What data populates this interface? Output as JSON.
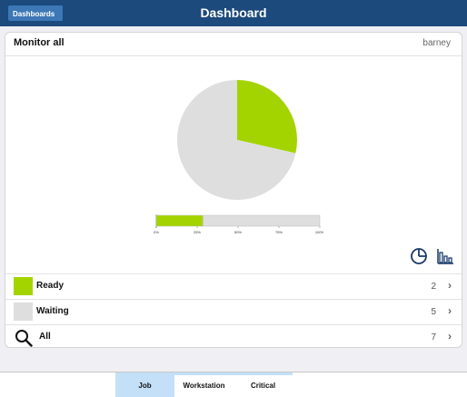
{
  "header": {
    "back_label": "Dashboards",
    "title": "Dashboard"
  },
  "card": {
    "title": "Monitor all",
    "user": "barney"
  },
  "chart_data": {
    "type": "pie",
    "categories": [
      "Ready",
      "Waiting"
    ],
    "values": [
      2,
      5
    ],
    "colors": [
      "#a4d400",
      "#dedede"
    ],
    "bar_ticks": [
      "0%",
      "25%",
      "50%",
      "75%",
      "100%"
    ]
  },
  "rows": [
    {
      "label": "Ready",
      "count": "2",
      "color": "#a4d400"
    },
    {
      "label": "Waiting",
      "count": "5",
      "color": "#dedede"
    },
    {
      "label": "All",
      "count": "7",
      "icon": "search-icon"
    }
  ],
  "view_buttons": {
    "pie": "pie-chart-icon",
    "bar": "bar-chart-icon"
  },
  "tabs": [
    {
      "label": "Job",
      "active": true
    },
    {
      "label": "Workstation",
      "active": false
    },
    {
      "label": "Critical",
      "active": false
    }
  ]
}
